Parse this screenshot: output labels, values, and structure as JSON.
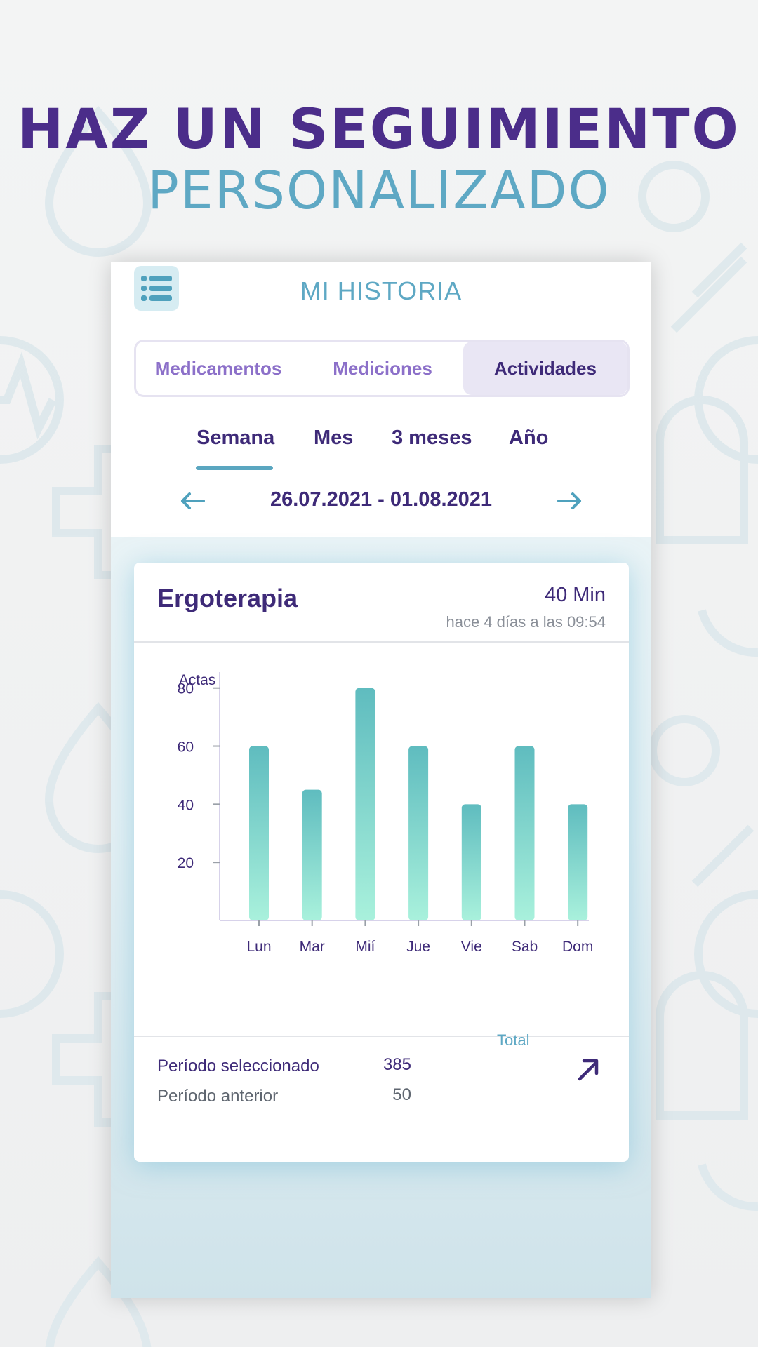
{
  "headline": {
    "line1": "HAZ UN SEGUIMIENTO",
    "line2": "PERSONALIZADO"
  },
  "app": {
    "title": "MI HISTORIA",
    "menu_icon": "list-icon"
  },
  "tabs": [
    {
      "label": "Medicamentos",
      "active": false
    },
    {
      "label": "Mediciones",
      "active": false
    },
    {
      "label": "Actividades",
      "active": true
    }
  ],
  "periods": [
    {
      "label": "Semana",
      "active": true
    },
    {
      "label": "Mes",
      "active": false
    },
    {
      "label": "3 meses",
      "active": false
    },
    {
      "label": "Año",
      "active": false
    }
  ],
  "date_range": {
    "label": "26.07.2021 - 01.08.2021",
    "prev_icon": "arrow-left-icon",
    "next_icon": "arrow-right-icon"
  },
  "card": {
    "title": "Ergoterapia",
    "duration": "40 Min",
    "last_time": "hace 4 días a las 09:54"
  },
  "chart_data": {
    "type": "bar",
    "categories": [
      "Lun",
      "Mar",
      "Mií",
      "Jue",
      "Vie",
      "Sab",
      "Dom"
    ],
    "values": [
      60,
      45,
      80,
      60,
      40,
      60,
      40
    ],
    "ylabel": "Actas",
    "yticks": [
      20,
      40,
      60,
      80
    ],
    "ylim": [
      0,
      85
    ],
    "colors": {
      "bar_top": "#5fbcbf",
      "bar_bottom": "#a9f1dc",
      "axis": "#d7d2ea",
      "text": "#3e2a78"
    }
  },
  "summary": {
    "total_label": "Total",
    "selected_label": "Período seleccionado",
    "selected_value": "385",
    "previous_label": "Período anterior",
    "previous_value": "50",
    "trend_icon": "arrow-up-right-icon"
  },
  "colors": {
    "primary": "#3e2a78",
    "accent": "#5ea8c4",
    "tab_active_bg": "#e9e6f4"
  }
}
